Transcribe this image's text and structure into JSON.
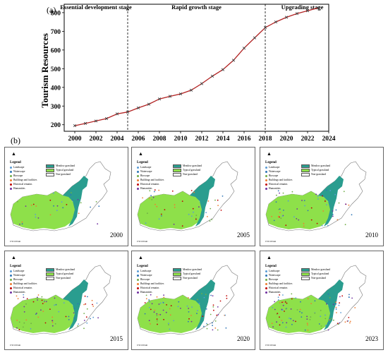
{
  "chart_data": {
    "type": "line",
    "panel_label": "(a)",
    "ylabel": "Tourism Resources",
    "xlabel": "",
    "xlim": [
      1999,
      2024
    ],
    "ylim": [
      165,
      845
    ],
    "xticks": [
      2000,
      2002,
      2004,
      2006,
      2008,
      2010,
      2012,
      2014,
      2016,
      2018,
      2020,
      2022,
      2024
    ],
    "yticks": [
      200,
      300,
      400,
      500,
      600,
      700,
      800
    ],
    "x": [
      2000,
      2001,
      2002,
      2003,
      2004,
      2005,
      2006,
      2007,
      2008,
      2009,
      2010,
      2011,
      2012,
      2013,
      2014,
      2015,
      2016,
      2017,
      2018,
      2019,
      2020,
      2021,
      2022,
      2023
    ],
    "values": [
      195,
      207,
      220,
      233,
      258,
      268,
      290,
      310,
      338,
      352,
      365,
      385,
      420,
      460,
      495,
      545,
      610,
      665,
      720,
      750,
      775,
      795,
      810,
      825
    ],
    "line_color": "#b22222",
    "marker_color": "#404040",
    "stage_dividers": [
      2005,
      2018
    ],
    "stages": [
      {
        "label": "Essential development stage",
        "x_center": 2002
      },
      {
        "label": "Rapid growth stage",
        "x_center": 2011.5
      },
      {
        "label": "Upgrading stage",
        "x_center": 2021.5
      }
    ]
  },
  "maps": {
    "panel_label": "(b)",
    "legend": {
      "title": "Legend",
      "points": [
        {
          "label": "Landscape",
          "color": "#5a9bd5"
        },
        {
          "label": "Waterscape",
          "color": "#2e75b6"
        },
        {
          "label": "Bioscape",
          "color": "#70ad47"
        },
        {
          "label": "Buildings and facilities",
          "color": "#ed7d31"
        },
        {
          "label": "Historical remains",
          "color": "#c00000"
        },
        {
          "label": "Humanities",
          "color": "#7030a0"
        }
      ],
      "areas": [
        {
          "label": "Meadow grassland",
          "color": "#2a9d8f"
        },
        {
          "label": "Typical grassland",
          "color": "#8ee04a"
        },
        {
          "label": "Non-grassland",
          "color": "#ffffff"
        }
      ]
    },
    "north_arrow": "▲",
    "scale_text": "0   50  100 km",
    "years": [
      "2000",
      "2005",
      "2010",
      "2015",
      "2020",
      "2023"
    ],
    "grid_colors": {
      "meadow": "#2a9d8f",
      "typical": "#8ee04a",
      "outline": "#777777"
    }
  }
}
